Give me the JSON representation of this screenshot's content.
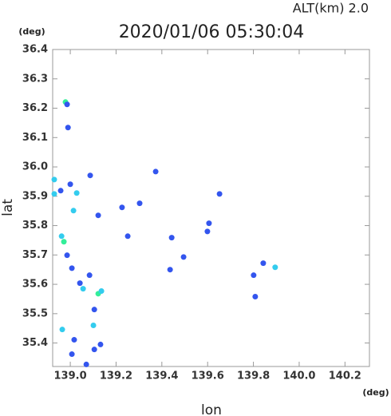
{
  "chart_data": {
    "type": "scatter",
    "title": "2020/01/06 05:30:04",
    "subtitle": "ALT(km) 2.0",
    "x_label": "lon",
    "y_label": "lat",
    "x_unit": "(deg)",
    "y_unit": "(deg)",
    "xlim": [
      138.923,
      140.307
    ],
    "ylim": [
      35.32,
      36.4
    ],
    "xticks": [
      {
        "value": 139,
        "label": "139.0"
      },
      139.2,
      139.4,
      139.6,
      139.8,
      {
        "value": 140,
        "label": "140.0"
      },
      140.2
    ],
    "yticks": [
      35.4,
      35.5,
      35.6,
      35.7,
      35.8,
      35.9,
      {
        "value": 36,
        "label": "36.0"
      },
      36.1,
      36.2,
      36.3,
      36.4
    ],
    "x": [
      138.979,
      138.986,
      138.99,
      138.93,
      138.93,
      138.958,
      139.0,
      139.028,
      139.014,
      138.962,
      138.972,
      138.986,
      139.007,
      139.042,
      139.056,
      139.084,
      139.122,
      139.136,
      139.105,
      139.101,
      138.965,
      139.017,
      139.007,
      139.105,
      139.132,
      139.07,
      139.087,
      139.122,
      139.226,
      139.303,
      139.373,
      139.443,
      139.436,
      139.495,
      139.599,
      139.606,
      139.801,
      139.808,
      139.843,
      139.895,
      139.652,
      139.251
    ],
    "y": [
      36.221,
      36.213,
      36.134,
      35.957,
      35.908,
      35.919,
      35.941,
      35.911,
      35.851,
      35.764,
      35.745,
      35.699,
      35.655,
      35.604,
      35.585,
      35.631,
      35.568,
      35.577,
      35.514,
      35.46,
      35.446,
      35.411,
      35.362,
      35.378,
      35.395,
      35.327,
      35.971,
      35.835,
      35.862,
      35.876,
      35.984,
      35.759,
      35.65,
      35.693,
      35.78,
      35.808,
      35.631,
      35.558,
      35.672,
      35.658,
      35.908,
      35.764
    ],
    "colors": [
      "#33ee99",
      "#3355ee",
      "#3355ee",
      "#33ccee",
      "#33ccee",
      "#3355ee",
      "#3355ee",
      "#33ccee",
      "#33ccee",
      "#33ccee",
      "#33ee99",
      "#3355ee",
      "#3355ee",
      "#3355ee",
      "#33ccee",
      "#3355ee",
      "#33ee99",
      "#33ccee",
      "#3355ee",
      "#33ccee",
      "#33ccee",
      "#3355ee",
      "#3355ee",
      "#3355ee",
      "#3355ee",
      "#3355ee",
      "#3355ee",
      "#3355ee",
      "#3355ee",
      "#3355ee",
      "#3355ee",
      "#3355ee",
      "#3355ee",
      "#3355ee",
      "#3355ee",
      "#3355ee",
      "#3355ee",
      "#3355ee",
      "#3355ee",
      "#33ccee",
      "#3355ee",
      "#3355ee"
    ],
    "frame_color": "#999999"
  }
}
